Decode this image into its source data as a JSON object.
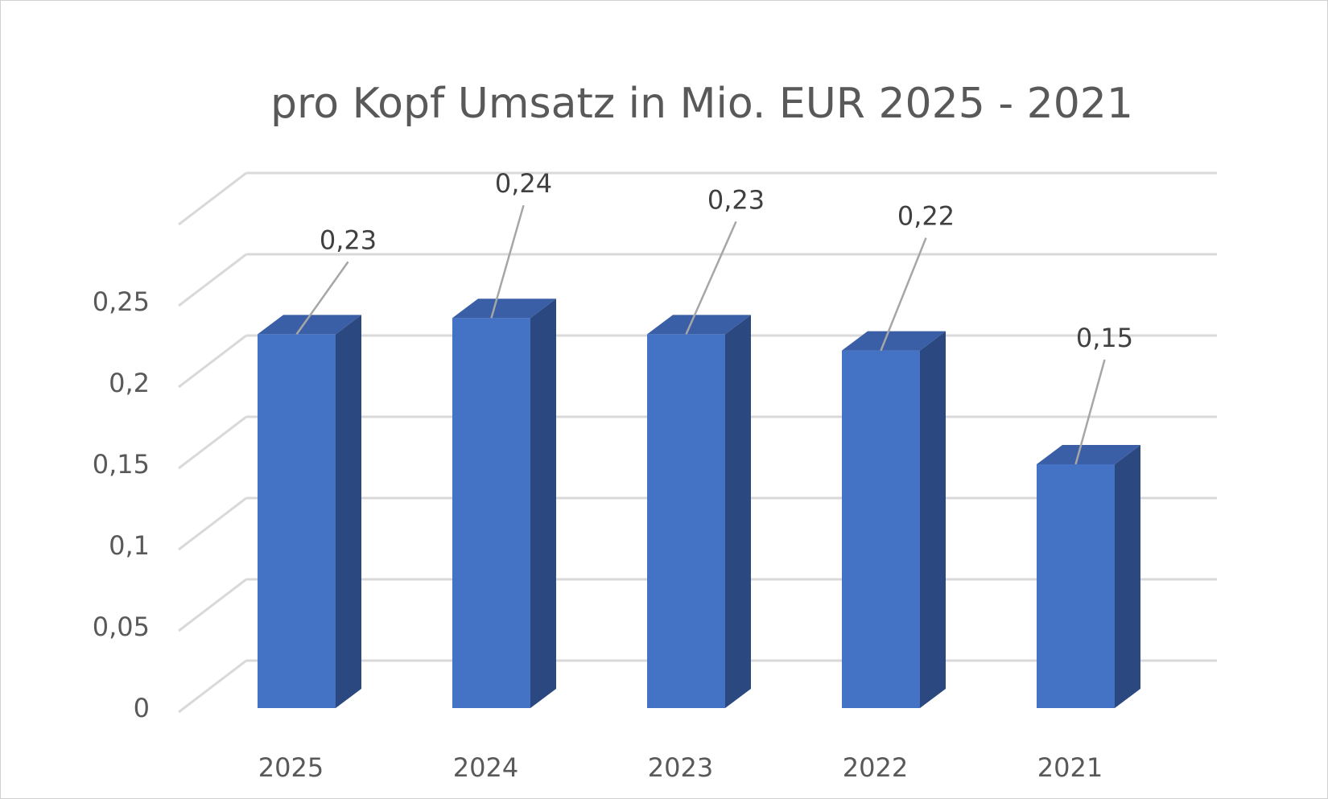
{
  "chart_data": {
    "type": "bar",
    "style": "3d-column",
    "title": "pro Kopf Umsatz in Mio. EUR 2025 - 2021",
    "categories": [
      "2025",
      "2024",
      "2023",
      "2022",
      "2021"
    ],
    "values": [
      0.23,
      0.24,
      0.23,
      0.22,
      0.15
    ],
    "data_labels": [
      "0,23",
      "0,24",
      "0,23",
      "0,22",
      "0,15"
    ],
    "yticks": [
      0,
      0.05,
      0.1,
      0.15,
      0.2,
      0.25
    ],
    "ytick_labels": [
      "0",
      "0,05",
      "0,1",
      "0,15",
      "0,2",
      "0,25"
    ],
    "ylim": [
      0,
      0.28
    ],
    "grid": true,
    "legend": "none",
    "colors": {
      "bar_front": "#4472C4",
      "bar_side": "#2B4880",
      "bar_top": "#3A5FA6",
      "grid": "#d9d9d9",
      "leader": "#a6a6a6"
    }
  }
}
